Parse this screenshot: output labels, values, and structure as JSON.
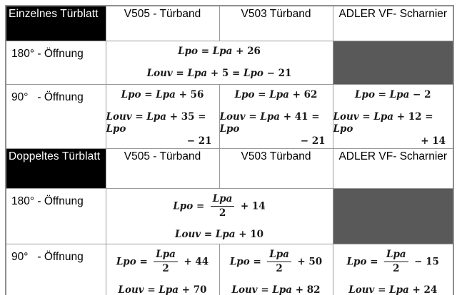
{
  "colors": {
    "section_header_bg": "#000000",
    "section_header_text": "#ffffff",
    "placeholder_cell_bg": "#595959",
    "grid_border": "#9a9a9a",
    "text": "#000000"
  },
  "table": {
    "section_single": {
      "title": "Einzelnes Türblatt",
      "col_v505": "V505 - Türband",
      "col_v503": "V503 Türband",
      "col_adler": "ADLER VF- Scharnier",
      "row_180": {
        "label": "180° - Öffnung",
        "formula_line1": "Lpo = Lpa + 26",
        "formula_line2": "Louv = Lpa + 5 = Lpo − 21"
      },
      "row_90": {
        "label": "90°   - Öffnung",
        "v505": {
          "line1": "Lpo = Lpa + 56",
          "line2": "Louv = Lpa + 35 = Lpo",
          "line2_cont": "− 21"
        },
        "v503": {
          "line1": "Lpo = Lpa + 62",
          "line2": "Louv = Lpa + 41 = Lpo",
          "line2_cont": "− 21"
        },
        "adler": {
          "line1": "Lpo = Lpa − 2",
          "line2": "Louv = Lpa + 12 = Lpo",
          "line2_cont": "+ 14"
        }
      }
    },
    "section_double": {
      "title": "Doppeltes Türblatt",
      "col_v505": "V505 - Türband",
      "col_v503": "V503 Türband",
      "col_adler": "ADLER VF- Scharnier",
      "row_180": {
        "label": "180° - Öffnung",
        "formula1": {
          "lhs": "Lpo =",
          "numerator": "Lpa",
          "denominator": "2",
          "rhs": "+ 14"
        },
        "formula_line2": "Louv = Lpa + 10"
      },
      "row_90": {
        "label": "90°   - Öffnung",
        "v505": {
          "lhs": "Lpo =",
          "numerator": "Lpa",
          "denominator": "2",
          "rhs": "+ 44",
          "line2": "Louv = Lpa + 70"
        },
        "v503": {
          "lhs": "Lpo =",
          "numerator": "Lpa",
          "denominator": "2",
          "rhs": "+ 50",
          "line2": "Louv = Lpa + 82"
        },
        "adler": {
          "lhs": "Lpo =",
          "numerator": "Lpa",
          "denominator": "2",
          "rhs": "− 15",
          "line2": "Louv = Lpa + 24"
        }
      }
    }
  }
}
